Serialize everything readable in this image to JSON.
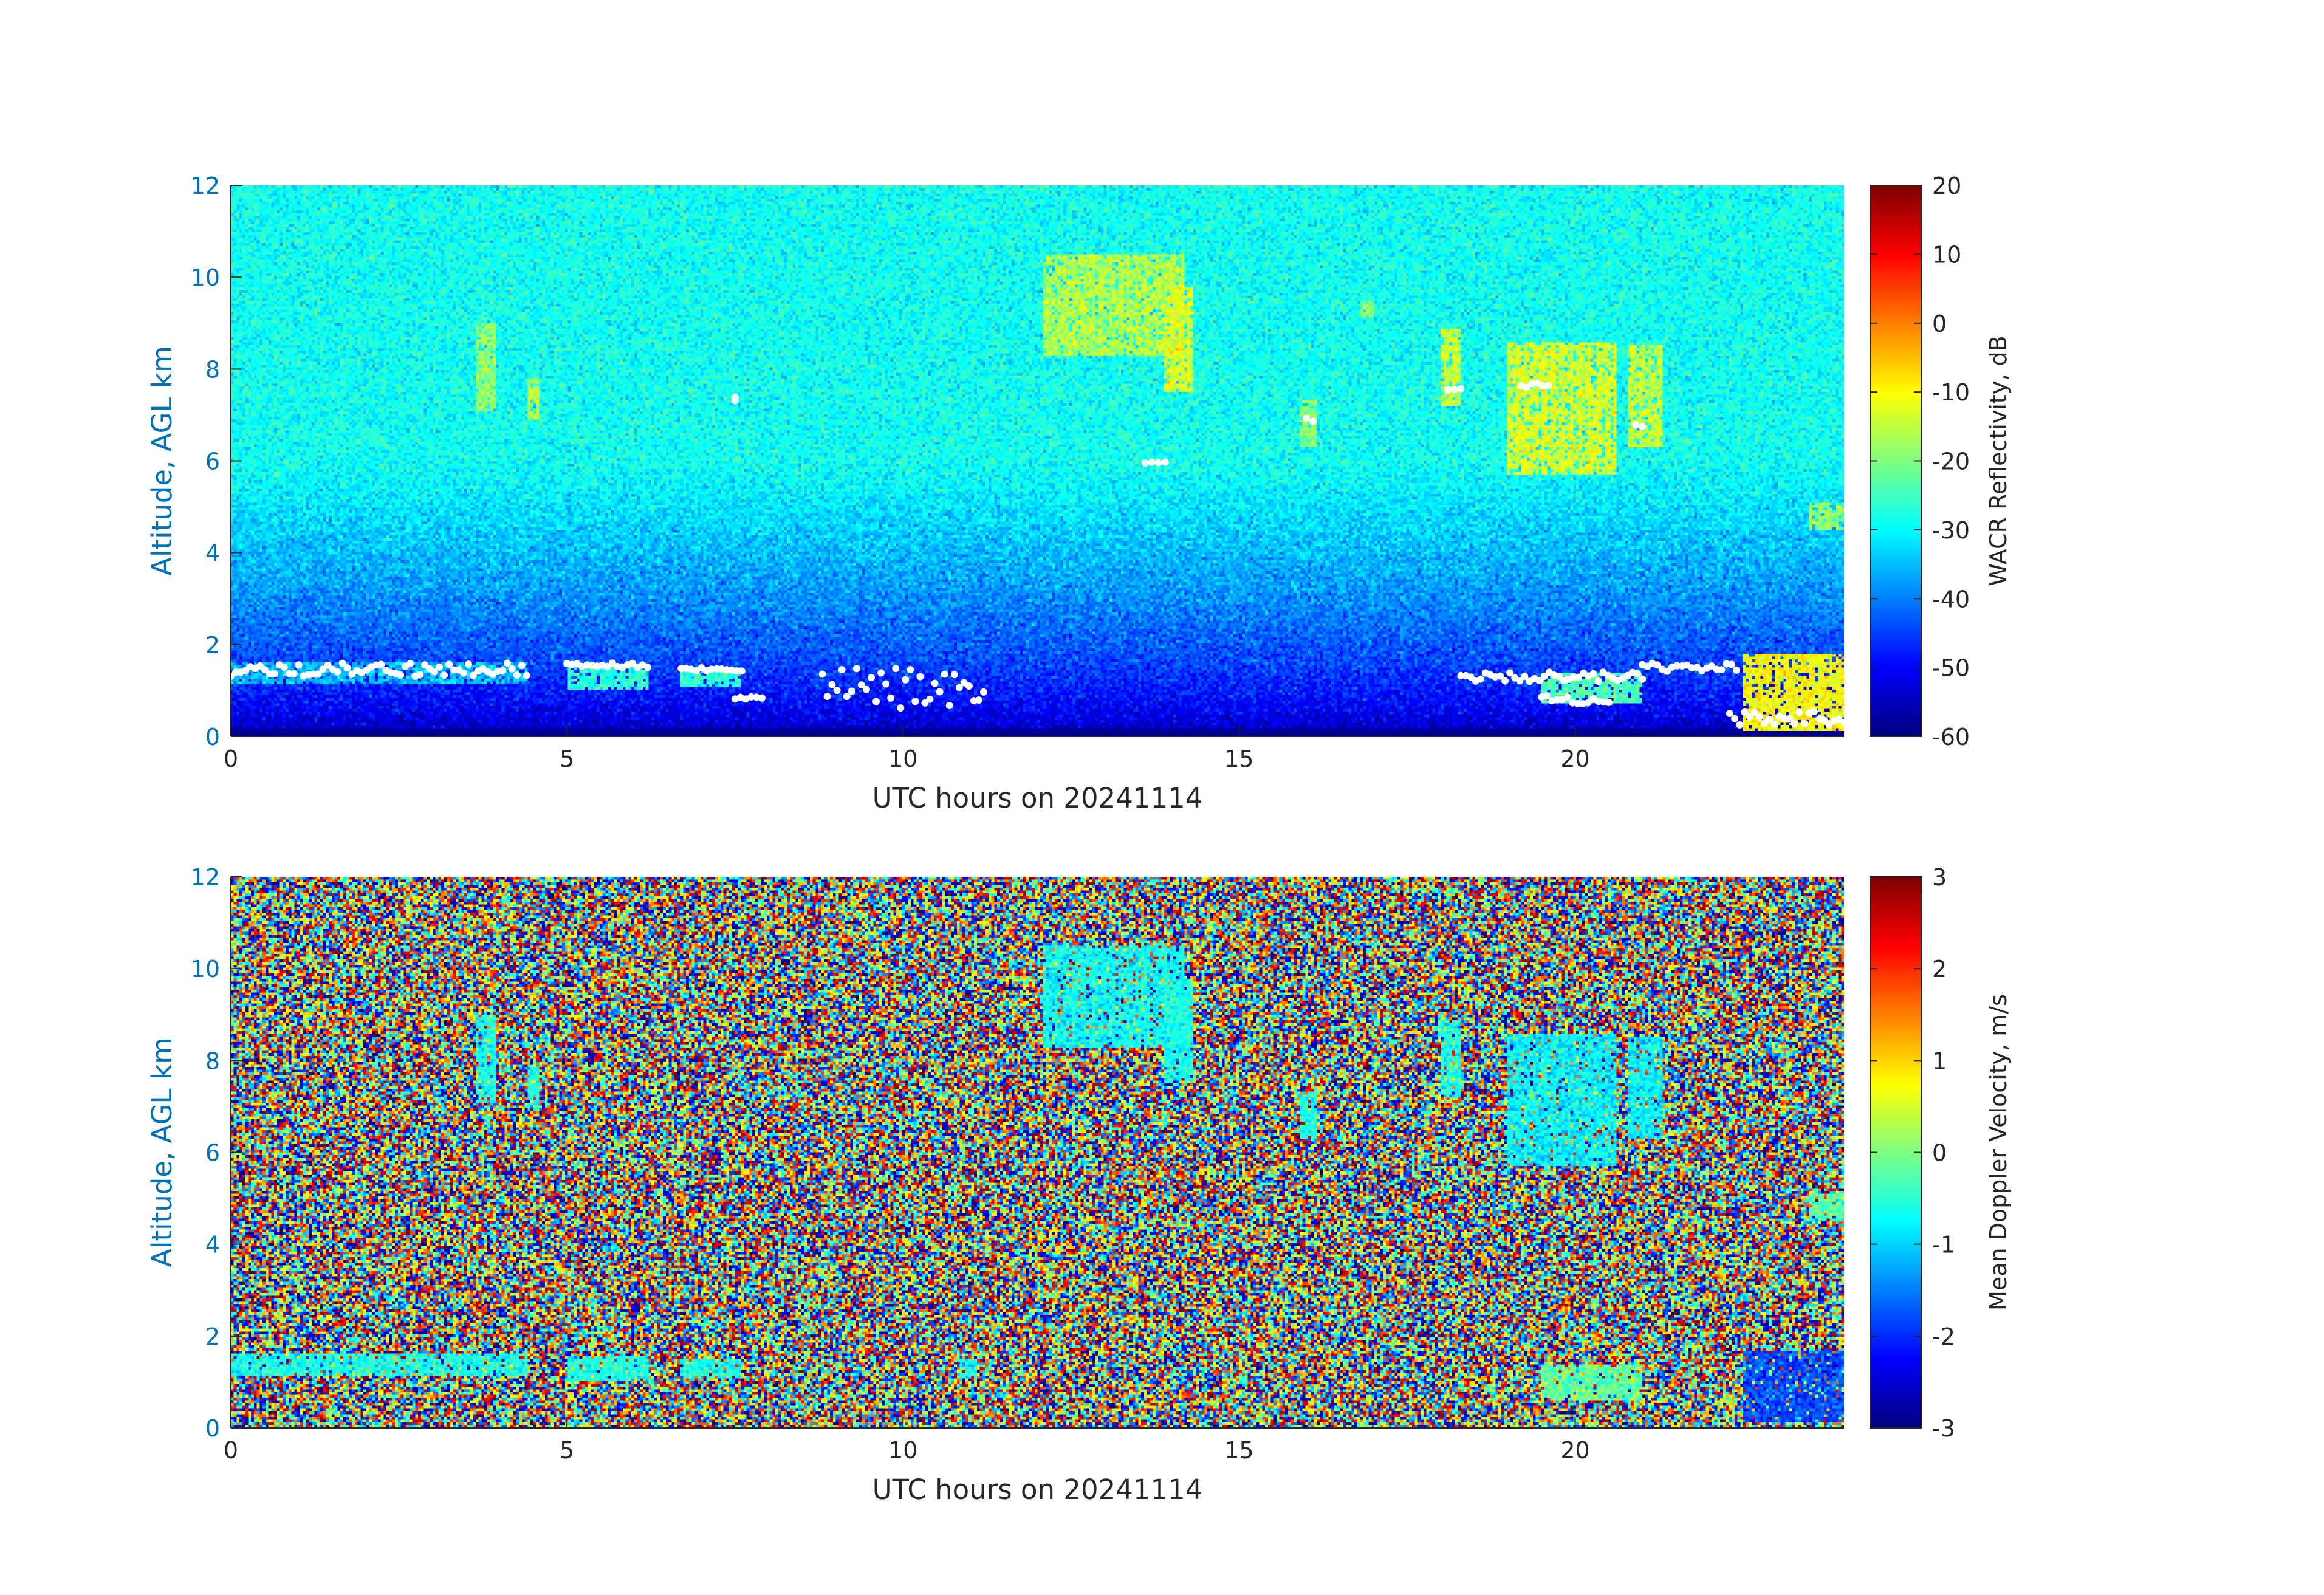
{
  "figure": {
    "background": "#ffffff",
    "tick_color_y": "#0072bd",
    "tick_color_x": "#262626"
  },
  "chart_data": [
    {
      "type": "heatmap",
      "xlabel": "UTC hours on 20241114",
      "ylabel": "Altitude, AGL km",
      "xlim": [
        0,
        24
      ],
      "ylim": [
        0,
        12
      ],
      "xticks": [
        0,
        5,
        10,
        15,
        20
      ],
      "yticks": [
        0,
        2,
        4,
        6,
        8,
        10,
        12
      ],
      "colorbar": {
        "label": "WACR Reflectivity, dB",
        "range": [
          -60,
          20
        ],
        "ticks": [
          -60,
          -50,
          -40,
          -30,
          -20,
          -10,
          0,
          10,
          20
        ],
        "colormap": "jet"
      },
      "background_field": {
        "surface_value": -58,
        "top_value": -29,
        "description_note": "noise increasing with altitude"
      },
      "features": [
        {
          "kind": "cloud",
          "x": [
            3.65,
            3.95
          ],
          "y": [
            7.1,
            9.0
          ],
          "value": -18
        },
        {
          "kind": "cloud",
          "x": [
            4.4,
            4.6
          ],
          "y": [
            6.9,
            7.8
          ],
          "value": -16
        },
        {
          "kind": "cloud",
          "x": [
            12.1,
            14.2
          ],
          "y": [
            8.3,
            10.5
          ],
          "value": -16
        },
        {
          "kind": "cloud",
          "x": [
            13.9,
            14.3
          ],
          "y": [
            7.5,
            9.8
          ],
          "value": -13
        },
        {
          "kind": "cloud",
          "x": [
            15.9,
            16.15
          ],
          "y": [
            6.3,
            7.3
          ],
          "value": -20
        },
        {
          "kind": "cloud",
          "x": [
            16.8,
            17.0
          ],
          "y": [
            9.1,
            9.5
          ],
          "value": -20
        },
        {
          "kind": "cloud",
          "x": [
            18.0,
            18.3
          ],
          "y": [
            7.2,
            8.9
          ],
          "value": -15
        },
        {
          "kind": "cloud",
          "x": [
            19.0,
            20.6
          ],
          "y": [
            5.7,
            8.6
          ],
          "value": -13
        },
        {
          "kind": "cloud",
          "x": [
            20.8,
            21.3
          ],
          "y": [
            6.3,
            8.5
          ],
          "value": -15
        },
        {
          "kind": "cloud",
          "x": [
            23.5,
            24.0
          ],
          "y": [
            4.5,
            5.1
          ],
          "value": -18
        },
        {
          "kind": "low_cloud",
          "x": [
            0.0,
            4.4
          ],
          "y": [
            1.15,
            1.6
          ],
          "value": -35
        },
        {
          "kind": "low_cloud",
          "x": [
            5.0,
            6.2
          ],
          "y": [
            1.0,
            1.55
          ],
          "value": -27
        },
        {
          "kind": "low_cloud",
          "x": [
            6.7,
            7.6
          ],
          "y": [
            1.1,
            1.5
          ],
          "value": -27
        },
        {
          "kind": "low_cloud",
          "x": [
            19.5,
            21.0
          ],
          "y": [
            0.7,
            1.4
          ],
          "value": -24
        },
        {
          "kind": "low_cloud",
          "x": [
            22.5,
            24.0
          ],
          "y": [
            0.1,
            1.8
          ],
          "value": -10
        }
      ],
      "white_markers": [
        {
          "x": [
            0.0,
            4.4
          ],
          "y": [
            1.3,
            1.6
          ]
        },
        {
          "x": [
            5.0,
            6.2
          ],
          "y": [
            1.5,
            1.6
          ]
        },
        {
          "x": [
            6.7,
            7.6
          ],
          "y": [
            1.4,
            1.5
          ]
        },
        {
          "x": [
            7.5,
            7.9
          ],
          "y": [
            0.8,
            0.9
          ]
        },
        {
          "x": [
            8.8,
            11.2
          ],
          "y": [
            0.6,
            1.5
          ]
        },
        {
          "x": [
            13.6,
            13.9
          ],
          "y": [
            5.9,
            6.0
          ]
        },
        {
          "x": [
            18.3,
            21.0
          ],
          "y": [
            1.2,
            1.4
          ]
        },
        {
          "x": [
            19.5,
            20.5
          ],
          "y": [
            0.7,
            0.9
          ]
        },
        {
          "x": [
            21.0,
            22.4
          ],
          "y": [
            1.4,
            1.6
          ]
        },
        {
          "x": [
            22.3,
            24.0
          ],
          "y": [
            0.25,
            0.55
          ]
        },
        {
          "x": [
            18.1,
            18.3
          ],
          "y": [
            7.5,
            7.7
          ]
        },
        {
          "x": [
            19.2,
            19.6
          ],
          "y": [
            7.5,
            7.7
          ]
        },
        {
          "x": [
            16.0,
            16.1
          ],
          "y": [
            6.8,
            7.0
          ]
        },
        {
          "x": [
            20.9,
            21.0
          ],
          "y": [
            6.7,
            6.8
          ]
        },
        {
          "x": [
            7.5,
            7.5
          ],
          "y": [
            7.3,
            7.4
          ]
        }
      ]
    },
    {
      "type": "heatmap",
      "xlabel": "UTC hours on 20241114",
      "ylabel": "Altitude, AGL km",
      "xlim": [
        0,
        24
      ],
      "ylim": [
        0,
        12
      ],
      "xticks": [
        0,
        5,
        10,
        15,
        20
      ],
      "yticks": [
        0,
        2,
        4,
        6,
        8,
        10,
        12
      ],
      "colorbar": {
        "label": "Mean Doppler Velocity, m/s",
        "range": [
          -3,
          3
        ],
        "ticks": [
          -3,
          -2,
          -1,
          0,
          1,
          2,
          3
        ],
        "colormap": "jet"
      },
      "background_field": {
        "random_noise_range": [
          -3,
          3
        ],
        "description_note": "random noise outside cloud"
      },
      "features": [
        {
          "kind": "cloud",
          "x": [
            3.65,
            3.95
          ],
          "y": [
            7.1,
            9.0
          ],
          "value": -0.6
        },
        {
          "kind": "cloud",
          "x": [
            4.4,
            4.6
          ],
          "y": [
            6.9,
            7.8
          ],
          "value": -0.6
        },
        {
          "kind": "cloud",
          "x": [
            12.1,
            14.2
          ],
          "y": [
            8.3,
            10.5
          ],
          "value": -0.7
        },
        {
          "kind": "cloud",
          "x": [
            13.9,
            14.3
          ],
          "y": [
            7.5,
            9.8
          ],
          "value": -0.6
        },
        {
          "kind": "cloud",
          "x": [
            15.9,
            16.15
          ],
          "y": [
            6.3,
            7.3
          ],
          "value": -0.6
        },
        {
          "kind": "cloud",
          "x": [
            18.0,
            18.3
          ],
          "y": [
            7.2,
            8.9
          ],
          "value": -0.6
        },
        {
          "kind": "cloud",
          "x": [
            19.0,
            20.6
          ],
          "y": [
            5.7,
            8.6
          ],
          "value": -0.8
        },
        {
          "kind": "cloud",
          "x": [
            20.8,
            21.3
          ],
          "y": [
            6.3,
            8.5
          ],
          "value": -0.8
        },
        {
          "kind": "cloud",
          "x": [
            23.5,
            24.0
          ],
          "y": [
            4.5,
            5.1
          ],
          "value": -0.3
        },
        {
          "kind": "low_cloud",
          "x": [
            0.0,
            4.4
          ],
          "y": [
            1.15,
            1.6
          ],
          "value": -0.6
        },
        {
          "kind": "low_cloud",
          "x": [
            5.0,
            6.2
          ],
          "y": [
            1.0,
            1.55
          ],
          "value": -0.6
        },
        {
          "kind": "low_cloud",
          "x": [
            6.7,
            7.6
          ],
          "y": [
            1.1,
            1.5
          ],
          "value": -0.6
        },
        {
          "kind": "low_cloud",
          "x": [
            10.8,
            11.1
          ],
          "y": [
            1.1,
            1.5
          ],
          "value": -0.6
        },
        {
          "kind": "low_cloud",
          "x": [
            19.5,
            21.0
          ],
          "y": [
            0.6,
            1.4
          ],
          "value": -0.2
        },
        {
          "kind": "low_cloud",
          "x": [
            22.5,
            24.0
          ],
          "y": [
            0.1,
            1.7
          ],
          "value": -1.8
        }
      ]
    }
  ]
}
